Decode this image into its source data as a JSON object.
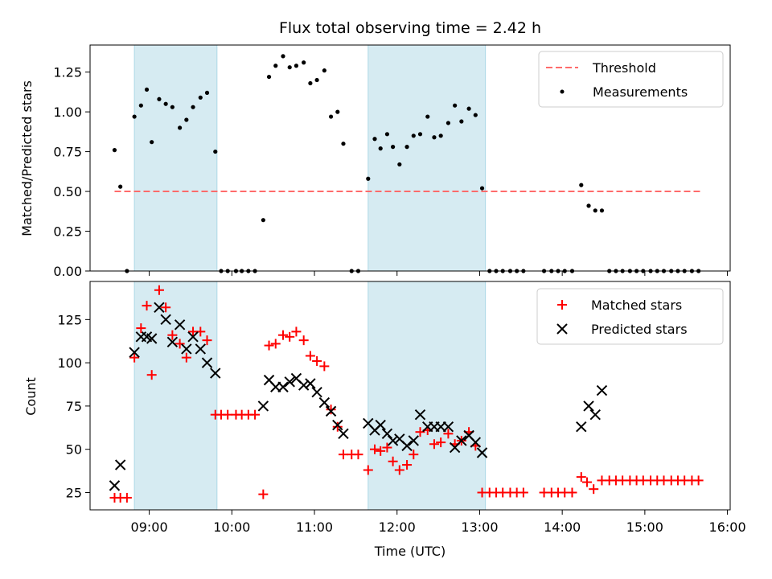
{
  "chart_data": [
    {
      "type": "scatter",
      "title": "Flux total observing time = 2.42 h",
      "ylabel": "Matched/Predicted stars",
      "ylim": [
        0,
        1.42
      ],
      "yticks": [
        "0.00",
        "0.25",
        "0.50",
        "0.75",
        "1.00",
        "1.25"
      ],
      "legend": "top-right",
      "threshold": {
        "name": "Threshold",
        "value": 0.5,
        "x_start": 8.58,
        "x_end": 15.67,
        "color": "#ff6b6b"
      },
      "shaded_intervals": [
        [
          8.82,
          9.82
        ],
        [
          11.65,
          13.07
        ]
      ],
      "series": [
        {
          "name": "Measurements",
          "color": "#000000",
          "points": [
            [
              8.58,
              0.76
            ],
            [
              8.65,
              0.53
            ],
            [
              8.73,
              0.0
            ],
            [
              8.82,
              0.97
            ],
            [
              8.9,
              1.04
            ],
            [
              8.97,
              1.14
            ],
            [
              9.03,
              0.81
            ],
            [
              9.12,
              1.08
            ],
            [
              9.2,
              1.05
            ],
            [
              9.28,
              1.03
            ],
            [
              9.37,
              0.9
            ],
            [
              9.45,
              0.95
            ],
            [
              9.53,
              1.03
            ],
            [
              9.62,
              1.09
            ],
            [
              9.7,
              1.12
            ],
            [
              9.8,
              0.75
            ],
            [
              9.87,
              0.0
            ],
            [
              9.95,
              0.0
            ],
            [
              10.05,
              0.0
            ],
            [
              10.12,
              0.0
            ],
            [
              10.2,
              0.0
            ],
            [
              10.28,
              0.0
            ],
            [
              10.38,
              0.32
            ],
            [
              10.45,
              1.22
            ],
            [
              10.53,
              1.29
            ],
            [
              10.62,
              1.35
            ],
            [
              10.7,
              1.28
            ],
            [
              10.78,
              1.29
            ],
            [
              10.87,
              1.31
            ],
            [
              10.95,
              1.18
            ],
            [
              11.03,
              1.2
            ],
            [
              11.12,
              1.26
            ],
            [
              11.2,
              0.97
            ],
            [
              11.28,
              1.0
            ],
            [
              11.35,
              0.8
            ],
            [
              11.45,
              0.0
            ],
            [
              11.53,
              0.0
            ],
            [
              11.65,
              0.58
            ],
            [
              11.73,
              0.83
            ],
            [
              11.8,
              0.77
            ],
            [
              11.88,
              0.86
            ],
            [
              11.95,
              0.78
            ],
            [
              12.03,
              0.67
            ],
            [
              12.12,
              0.78
            ],
            [
              12.2,
              0.85
            ],
            [
              12.28,
              0.86
            ],
            [
              12.37,
              0.97
            ],
            [
              12.45,
              0.84
            ],
            [
              12.53,
              0.85
            ],
            [
              12.62,
              0.93
            ],
            [
              12.7,
              1.04
            ],
            [
              12.78,
              0.94
            ],
            [
              12.87,
              1.02
            ],
            [
              12.95,
              0.98
            ],
            [
              13.03,
              0.52
            ],
            [
              13.12,
              0.0
            ],
            [
              13.2,
              0.0
            ],
            [
              13.28,
              0.0
            ],
            [
              13.37,
              0.0
            ],
            [
              13.45,
              0.0
            ],
            [
              13.53,
              0.0
            ],
            [
              13.78,
              0.0
            ],
            [
              13.87,
              0.0
            ],
            [
              13.95,
              0.0
            ],
            [
              14.03,
              0.0
            ],
            [
              14.12,
              0.0
            ],
            [
              14.23,
              0.54
            ],
            [
              14.32,
              0.41
            ],
            [
              14.4,
              0.38
            ],
            [
              14.48,
              0.38
            ],
            [
              14.57,
              0.0
            ],
            [
              14.65,
              0.0
            ],
            [
              14.73,
              0.0
            ],
            [
              14.82,
              0.0
            ],
            [
              14.9,
              0.0
            ],
            [
              14.98,
              0.0
            ],
            [
              15.07,
              0.0
            ],
            [
              15.15,
              0.0
            ],
            [
              15.23,
              0.0
            ],
            [
              15.32,
              0.0
            ],
            [
              15.4,
              0.0
            ],
            [
              15.48,
              0.0
            ],
            [
              15.57,
              0.0
            ],
            [
              15.65,
              0.0
            ]
          ]
        }
      ]
    },
    {
      "type": "scatter",
      "xlabel": "Time (UTC)",
      "ylabel": "Count",
      "ylim": [
        15,
        147
      ],
      "yticks": [
        "25",
        "50",
        "75",
        "100",
        "125"
      ],
      "xlim": [
        "08:17",
        "16:02"
      ],
      "xticks": [
        "09:00",
        "10:00",
        "11:00",
        "12:00",
        "13:00",
        "14:00",
        "15:00",
        "16:00"
      ],
      "legend": "top-right",
      "shaded_intervals": [
        [
          8.82,
          9.82
        ],
        [
          11.65,
          13.07
        ]
      ],
      "series": [
        {
          "name": "Matched stars",
          "color": "#ff0000",
          "marker": "plus",
          "points": [
            [
              8.58,
              22
            ],
            [
              8.65,
              22
            ],
            [
              8.73,
              22
            ],
            [
              8.82,
              103
            ],
            [
              8.9,
              120
            ],
            [
              8.97,
              133
            ],
            [
              9.03,
              93
            ],
            [
              9.12,
              142
            ],
            [
              9.2,
              132
            ],
            [
              9.28,
              116
            ],
            [
              9.37,
              111
            ],
            [
              9.45,
              103
            ],
            [
              9.53,
              118
            ],
            [
              9.62,
              118
            ],
            [
              9.7,
              113
            ],
            [
              9.8,
              70
            ],
            [
              9.87,
              70
            ],
            [
              9.95,
              70
            ],
            [
              10.05,
              70
            ],
            [
              10.12,
              70
            ],
            [
              10.2,
              70
            ],
            [
              10.28,
              70
            ],
            [
              10.38,
              24
            ],
            [
              10.45,
              110
            ],
            [
              10.53,
              111
            ],
            [
              10.62,
              116
            ],
            [
              10.7,
              115
            ],
            [
              10.78,
              118
            ],
            [
              10.87,
              113
            ],
            [
              10.95,
              104
            ],
            [
              11.03,
              101
            ],
            [
              11.12,
              98
            ],
            [
              11.2,
              73
            ],
            [
              11.28,
              63
            ],
            [
              11.35,
              47
            ],
            [
              11.45,
              47
            ],
            [
              11.53,
              47
            ],
            [
              11.65,
              38
            ],
            [
              11.73,
              50
            ],
            [
              11.8,
              49
            ],
            [
              11.88,
              51
            ],
            [
              11.95,
              43
            ],
            [
              12.03,
              38
            ],
            [
              12.12,
              41
            ],
            [
              12.2,
              47
            ],
            [
              12.28,
              60
            ],
            [
              12.37,
              61
            ],
            [
              12.45,
              53
            ],
            [
              12.53,
              54
            ],
            [
              12.62,
              59
            ],
            [
              12.7,
              53
            ],
            [
              12.78,
              55
            ],
            [
              12.87,
              60
            ],
            [
              12.95,
              52
            ],
            [
              13.03,
              25
            ],
            [
              13.12,
              25
            ],
            [
              13.2,
              25
            ],
            [
              13.28,
              25
            ],
            [
              13.37,
              25
            ],
            [
              13.45,
              25
            ],
            [
              13.53,
              25
            ],
            [
              13.78,
              25
            ],
            [
              13.87,
              25
            ],
            [
              13.95,
              25
            ],
            [
              14.03,
              25
            ],
            [
              14.12,
              25
            ],
            [
              14.23,
              34
            ],
            [
              14.3,
              31
            ],
            [
              14.38,
              27
            ],
            [
              14.48,
              32
            ],
            [
              14.57,
              32
            ],
            [
              14.65,
              32
            ],
            [
              14.73,
              32
            ],
            [
              14.82,
              32
            ],
            [
              14.9,
              32
            ],
            [
              14.98,
              32
            ],
            [
              15.07,
              32
            ],
            [
              15.15,
              32
            ],
            [
              15.23,
              32
            ],
            [
              15.32,
              32
            ],
            [
              15.4,
              32
            ],
            [
              15.48,
              32
            ],
            [
              15.57,
              32
            ],
            [
              15.65,
              32
            ]
          ]
        },
        {
          "name": "Predicted stars",
          "color": "#000000",
          "marker": "x",
          "points": [
            [
              8.58,
              29
            ],
            [
              8.65,
              41
            ],
            [
              8.82,
              106
            ],
            [
              8.9,
              115
            ],
            [
              8.97,
              115
            ],
            [
              9.03,
              114
            ],
            [
              9.12,
              132
            ],
            [
              9.2,
              125
            ],
            [
              9.28,
              112
            ],
            [
              9.37,
              122
            ],
            [
              9.45,
              108
            ],
            [
              9.53,
              115
            ],
            [
              9.62,
              108
            ],
            [
              9.7,
              100
            ],
            [
              9.8,
              94
            ],
            [
              10.38,
              75
            ],
            [
              10.45,
              90
            ],
            [
              10.53,
              86
            ],
            [
              10.62,
              86
            ],
            [
              10.7,
              89
            ],
            [
              10.78,
              91
            ],
            [
              10.87,
              87
            ],
            [
              10.95,
              88
            ],
            [
              11.03,
              83
            ],
            [
              11.12,
              77
            ],
            [
              11.2,
              72
            ],
            [
              11.28,
              64
            ],
            [
              11.35,
              59
            ],
            [
              11.65,
              65
            ],
            [
              11.73,
              61
            ],
            [
              11.8,
              64
            ],
            [
              11.88,
              59
            ],
            [
              11.95,
              55
            ],
            [
              12.03,
              56
            ],
            [
              12.12,
              52
            ],
            [
              12.2,
              55
            ],
            [
              12.28,
              70
            ],
            [
              12.37,
              63
            ],
            [
              12.45,
              63
            ],
            [
              12.53,
              63
            ],
            [
              12.62,
              63
            ],
            [
              12.7,
              51
            ],
            [
              12.78,
              55
            ],
            [
              12.87,
              58
            ],
            [
              12.95,
              54
            ],
            [
              13.03,
              48
            ],
            [
              14.23,
              63
            ],
            [
              14.32,
              75
            ],
            [
              14.4,
              70
            ],
            [
              14.48,
              84
            ]
          ]
        }
      ]
    }
  ]
}
